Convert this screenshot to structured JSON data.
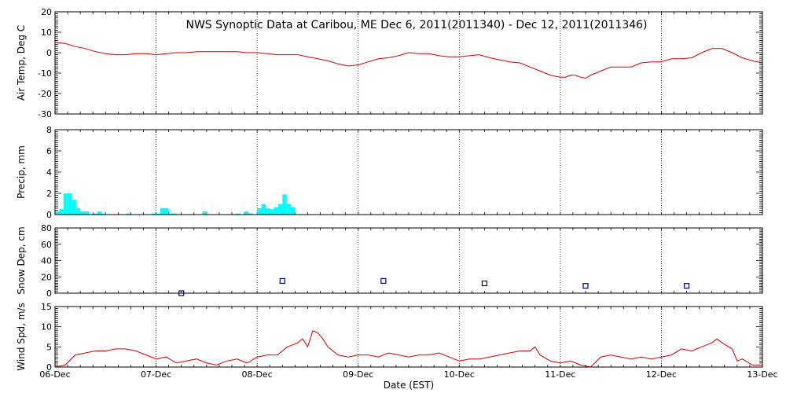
{
  "chart_data": {
    "type": "line",
    "title": "NWS Synoptic Data at Caribou, ME   Dec  6, 2011(2011340) - Dec 12, 2011(2011346)",
    "xlabel": "Date (EST)",
    "x_range": [
      0,
      7
    ],
    "x_ticks": [
      "06-Dec",
      "07-Dec",
      "08-Dec",
      "09-Dec",
      "10-Dec",
      "11-Dec",
      "12-Dec",
      "13-Dec"
    ],
    "grid": "vertical dotted at day boundaries",
    "colors": {
      "temp": "#dd0000",
      "precip": "#00ffff",
      "snow": "#000080",
      "wind": "#dd0000"
    },
    "panels": [
      {
        "id": "air-temp",
        "type": "line",
        "ylabel": "Air Temp, Deg C",
        "ylim": [
          -30,
          20
        ],
        "yticks": [
          -30,
          -20,
          -10,
          0,
          10,
          20
        ],
        "x": [
          0,
          0.1,
          0.2,
          0.3,
          0.4,
          0.5,
          0.6,
          0.7,
          0.8,
          0.9,
          1.0,
          1.1,
          1.2,
          1.3,
          1.4,
          1.5,
          1.6,
          1.7,
          1.8,
          1.9,
          2.0,
          2.1,
          2.2,
          2.3,
          2.4,
          2.5,
          2.6,
          2.7,
          2.8,
          2.9,
          3.0,
          3.1,
          3.2,
          3.3,
          3.4,
          3.5,
          3.6,
          3.7,
          3.8,
          3.9,
          4.0,
          4.1,
          4.2,
          4.3,
          4.4,
          4.5,
          4.6,
          4.7,
          4.8,
          4.9,
          5.0,
          5.05,
          5.1,
          5.15,
          5.2,
          5.25,
          5.3,
          5.4,
          5.5,
          5.6,
          5.7,
          5.8,
          5.9,
          6.0,
          6.1,
          6.2,
          6.3,
          6.4,
          6.5,
          6.6,
          6.7,
          6.8,
          6.9,
          7.0
        ],
        "y": [
          5,
          4.5,
          3,
          2,
          0.5,
          -0.5,
          -1,
          -1,
          -0.5,
          -0.5,
          -1,
          -0.5,
          0,
          0,
          0.5,
          0.5,
          0.5,
          0.5,
          0.5,
          0,
          0,
          -0.5,
          -1,
          -1,
          -1,
          -2,
          -3,
          -4,
          -5.5,
          -6.5,
          -6,
          -4.5,
          -3,
          -2.5,
          -1.5,
          0,
          -0.5,
          -0.5,
          -1.5,
          -2,
          -2,
          -1.5,
          -1,
          -2.5,
          -3.5,
          -4.5,
          -5,
          -7,
          -9,
          -11,
          -12,
          -12,
          -11,
          -11,
          -12,
          -12.5,
          -11,
          -9,
          -7,
          -7,
          -7,
          -5,
          -4.5,
          -4.5,
          -3,
          -3,
          -2.5,
          0,
          2,
          2,
          0,
          -2.5,
          -4,
          -5
        ]
      },
      {
        "id": "precip",
        "type": "bar",
        "ylabel": "Precip, mm",
        "ylim": [
          0,
          8
        ],
        "yticks": [
          0,
          2,
          4,
          6,
          8
        ],
        "bar_width_days": 0.042,
        "x": [
          0.0,
          0.042,
          0.083,
          0.125,
          0.167,
          0.208,
          0.25,
          0.292,
          0.375,
          0.417,
          0.458,
          0.708,
          0.958,
          1.0,
          1.042,
          1.083,
          1.125,
          1.167,
          1.458,
          1.792,
          1.875,
          1.917,
          2.0,
          2.042,
          2.083,
          2.125,
          2.167,
          2.208,
          2.25,
          2.292,
          2.333
        ],
        "values": [
          0.3,
          0.5,
          2.0,
          2.0,
          1.4,
          0.6,
          0.3,
          0.3,
          0.1,
          0.3,
          0.1,
          0.1,
          0.1,
          0.1,
          0.6,
          0.6,
          0.1,
          0.1,
          0.3,
          0.1,
          0.3,
          0.1,
          0.6,
          1.0,
          0.6,
          0.5,
          0.7,
          1.0,
          1.9,
          1.0,
          0.7
        ]
      },
      {
        "id": "snow-depth",
        "type": "scatter",
        "ylabel": "Snow Dep, cm",
        "ylim": [
          0,
          80
        ],
        "yticks": [
          0,
          20,
          40,
          60,
          80
        ],
        "x": [
          1.25,
          2.25,
          3.25,
          4.25,
          5.25,
          6.25
        ],
        "y": [
          0,
          15,
          15,
          12,
          9,
          9
        ]
      },
      {
        "id": "wind-speed",
        "type": "line",
        "ylabel": "Wind Spd, m/s",
        "ylim": [
          0,
          15
        ],
        "yticks": [
          0,
          5,
          10,
          15
        ],
        "x": [
          0,
          0.1,
          0.2,
          0.3,
          0.4,
          0.5,
          0.6,
          0.7,
          0.8,
          0.9,
          1.0,
          1.1,
          1.2,
          1.3,
          1.4,
          1.5,
          1.6,
          1.7,
          1.8,
          1.9,
          2.0,
          2.1,
          2.2,
          2.3,
          2.4,
          2.45,
          2.5,
          2.55,
          2.6,
          2.65,
          2.7,
          2.8,
          2.9,
          3.0,
          3.1,
          3.2,
          3.3,
          3.4,
          3.5,
          3.6,
          3.7,
          3.8,
          3.9,
          4.0,
          4.1,
          4.2,
          4.3,
          4.4,
          4.5,
          4.6,
          4.7,
          4.75,
          4.8,
          4.9,
          5.0,
          5.1,
          5.2,
          5.3,
          5.4,
          5.5,
          5.6,
          5.7,
          5.8,
          5.9,
          6.0,
          6.1,
          6.2,
          6.3,
          6.4,
          6.5,
          6.55,
          6.6,
          6.7,
          6.75,
          6.8,
          6.9,
          7.0
        ],
        "y": [
          0,
          0.5,
          3,
          3.5,
          4,
          4,
          4.5,
          4.5,
          4,
          3,
          2,
          2.5,
          1,
          1.5,
          2,
          1,
          0.5,
          1.5,
          2,
          1,
          2.5,
          3,
          3,
          5,
          6,
          7,
          5,
          9,
          8.5,
          7,
          5,
          3,
          2.5,
          3,
          3,
          2.5,
          3.5,
          3,
          2.5,
          3,
          3,
          3.5,
          2.5,
          1.5,
          2,
          2,
          2.5,
          3,
          3.5,
          4,
          4,
          5,
          3,
          1.5,
          1,
          1.5,
          0.5,
          0,
          2.5,
          3,
          2.5,
          2,
          2.5,
          2,
          2.5,
          3,
          4.5,
          4,
          5,
          6,
          7,
          6,
          4.5,
          1.5,
          2,
          0.5,
          0.5
        ]
      }
    ]
  }
}
